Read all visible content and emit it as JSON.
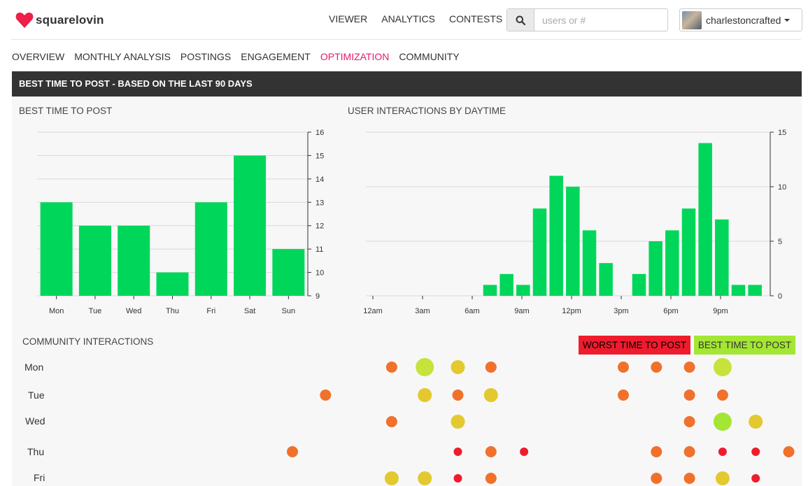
{
  "app": {
    "logo_text": "squarelovin",
    "brand_color": "#ee1f49"
  },
  "topnav": {
    "items": [
      {
        "label": "VIEWER"
      },
      {
        "label": "ANALYTICS"
      },
      {
        "label": "CONTESTS"
      }
    ]
  },
  "search": {
    "placeholder": "users or #",
    "icon": "search-icon"
  },
  "user": {
    "name": "charlestoncrafted",
    "icon": "chevron-down-icon"
  },
  "subnav": {
    "items": [
      {
        "label": "OVERVIEW",
        "active": false
      },
      {
        "label": "MONTHLY ANALYSIS",
        "active": false
      },
      {
        "label": "POSTINGS",
        "active": false
      },
      {
        "label": "ENGAGEMENT",
        "active": false
      },
      {
        "label": "OPTIMIZATION",
        "active": true
      },
      {
        "label": "COMMUNITY",
        "active": false
      }
    ],
    "active_color": "#e5196b"
  },
  "section": {
    "title": "BEST TIME TO POST - BASED ON THE LAST 90 DAYS"
  },
  "community": {
    "title": "COMMUNITY INTERACTIONS",
    "legend_worst": "WORST TIME TO POST",
    "legend_best": "BEST TIME TO POST",
    "worst_color": "#ee1c2d",
    "best_color": "#a3e633",
    "days": [
      "Mon",
      "Tue",
      "Wed",
      "Thu",
      "Fri"
    ],
    "hour_range": [
      0,
      23
    ],
    "rows": [
      {
        "day": "Mon",
        "points": [
          [
            11,
            "orange"
          ],
          [
            12,
            "lime"
          ],
          [
            13,
            "yellow"
          ],
          [
            14,
            "orange"
          ],
          [
            18,
            "orange"
          ],
          [
            19,
            "orange"
          ],
          [
            20,
            "orange"
          ],
          [
            21,
            "lime"
          ]
        ]
      },
      {
        "day": "Tue",
        "points": [
          [
            9,
            "orange"
          ],
          [
            12,
            "yellow"
          ],
          [
            13,
            "orange"
          ],
          [
            14,
            "yellow"
          ],
          [
            18,
            "orange"
          ],
          [
            20,
            "orange"
          ],
          [
            21,
            "orange"
          ]
        ]
      },
      {
        "day": "Wed",
        "points": [
          [
            11,
            "orange"
          ],
          [
            13,
            "yellow"
          ],
          [
            20,
            "orange"
          ],
          [
            21,
            "green"
          ],
          [
            22,
            "yellow"
          ]
        ]
      },
      {
        "day": "Thu",
        "points": [
          [
            8,
            "orange"
          ],
          [
            13,
            "red"
          ],
          [
            14,
            "orange"
          ],
          [
            15,
            "red"
          ],
          [
            19,
            "orange"
          ],
          [
            20,
            "orange"
          ],
          [
            21,
            "red"
          ],
          [
            22,
            "red"
          ],
          [
            23,
            "orange"
          ]
        ]
      },
      {
        "day": "Fri",
        "points": [
          [
            11,
            "yellow"
          ],
          [
            12,
            "yellow"
          ],
          [
            13,
            "red"
          ],
          [
            14,
            "orange"
          ],
          [
            19,
            "orange"
          ],
          [
            20,
            "orange"
          ],
          [
            21,
            "yellow"
          ],
          [
            22,
            "red"
          ]
        ]
      }
    ],
    "colors": {
      "red": "#ee1c2d",
      "orange": "#f0712c",
      "yellow": "#e3c92f",
      "lime": "#c5e33b",
      "green": "#a3e633"
    }
  },
  "chart_data": [
    {
      "type": "bar",
      "title": "BEST TIME TO POST",
      "categories": [
        "Mon",
        "Tue",
        "Wed",
        "Thu",
        "Fri",
        "Sat",
        "Sun"
      ],
      "values": [
        13,
        12,
        12,
        10,
        13,
        15,
        11
      ],
      "ylim": [
        9,
        16
      ],
      "yticks": [
        9,
        10,
        11,
        12,
        13,
        14,
        15,
        16
      ],
      "y_axis_side": "right",
      "grid": true,
      "color": "#00d65a"
    },
    {
      "type": "bar",
      "title": "USER INTERACTIONS BY DAYTIME",
      "categories": [
        "12am",
        "1am",
        "2am",
        "3am",
        "4am",
        "5am",
        "6am",
        "7am",
        "8am",
        "9am",
        "10am",
        "11am",
        "12pm",
        "1pm",
        "2pm",
        "3pm",
        "4pm",
        "5pm",
        "6pm",
        "7pm",
        "8pm",
        "9pm",
        "10pm",
        "11pm"
      ],
      "tick_labels": [
        "12am",
        "3am",
        "6am",
        "9am",
        "12pm",
        "3pm",
        "6pm",
        "9pm"
      ],
      "values": [
        0,
        0,
        0,
        0,
        0,
        0,
        0,
        1,
        2,
        1,
        8,
        11,
        10,
        6,
        3,
        0,
        2,
        5,
        6,
        8,
        14,
        7,
        1,
        1
      ],
      "ylim": [
        0,
        15
      ],
      "yticks": [
        0,
        5,
        10,
        15
      ],
      "y_axis_side": "right",
      "grid": true,
      "color": "#00d65a"
    }
  ]
}
